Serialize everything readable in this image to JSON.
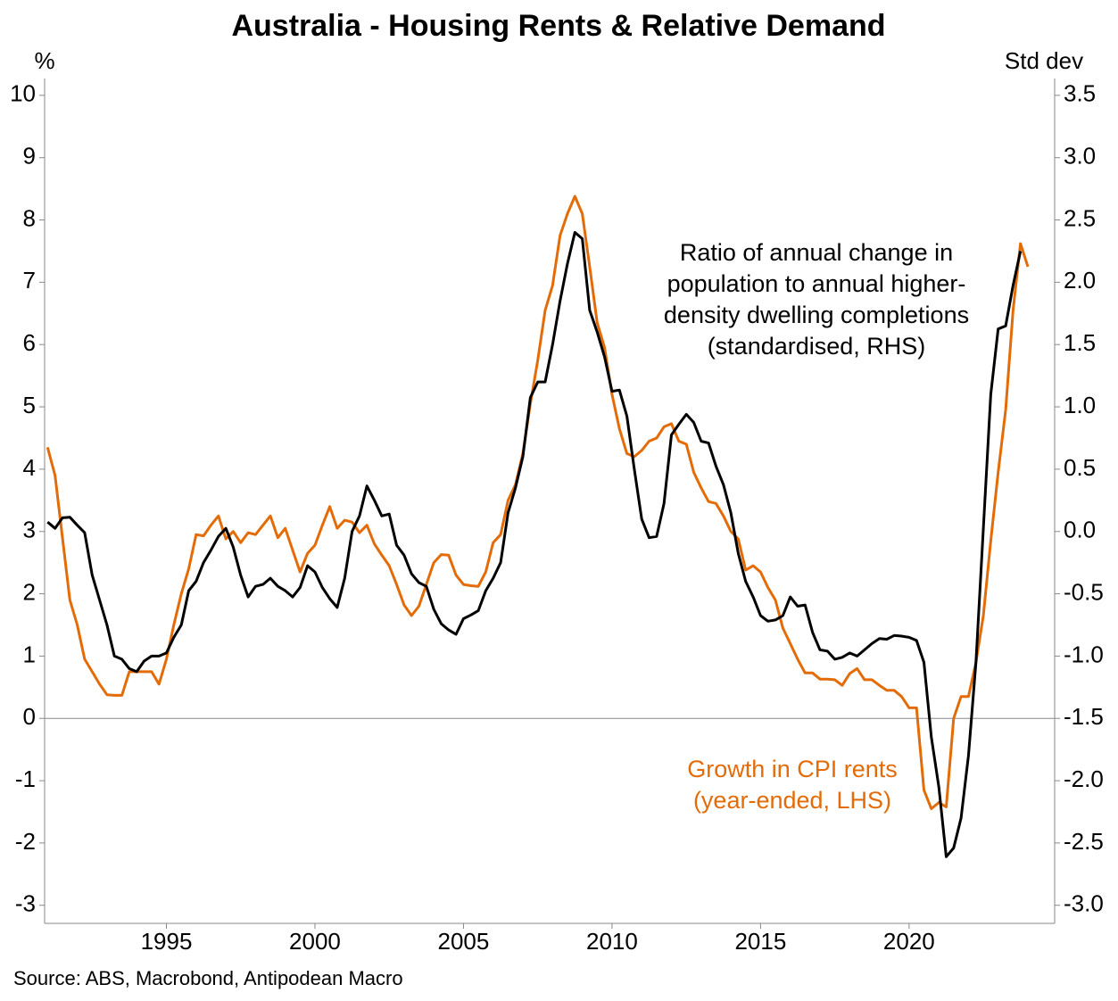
{
  "chart_data": {
    "type": "line",
    "title": "Australia - Housing Rents & Relative Demand",
    "y_unit": "%",
    "y2_unit": "Std dev",
    "source": "Source: ABS, Macrobond, Antipodean Macro",
    "annotations": [
      {
        "lines": [
          "Ratio of annual change in",
          "population to annual higher-",
          "density dwelling completions",
          "(standardised, RHS)"
        ],
        "color": "#000000"
      },
      {
        "lines": [
          "Growth in CPI rents",
          "(year-ended, LHS)"
        ],
        "color": "#e36c09"
      }
    ],
    "xlim": [
      1990.9,
      2024.9
    ],
    "xticks": [
      1995,
      2000,
      2005,
      2010,
      2015,
      2020
    ],
    "ylim": [
      -3.29,
      10.27
    ],
    "yticks": [
      -3,
      -2,
      -1,
      0,
      1,
      2,
      3,
      4,
      5,
      6,
      7,
      8,
      9,
      10
    ],
    "y2lim": [
      -3.145,
      3.635
    ],
    "y2ticks": [
      {
        "value": -3,
        "label": "-3.0"
      },
      -2.5,
      {
        "value": -2,
        "label": "-2.0"
      },
      -1.5,
      {
        "value": -1,
        "label": "-1.0"
      },
      -0.5,
      {
        "value": 0,
        "label": "0.0"
      },
      0.5,
      {
        "value": 1,
        "label": "1.0"
      },
      1.5,
      {
        "value": 2,
        "label": "2.0"
      },
      2.5,
      {
        "value": 3,
        "label": "3.0"
      },
      3.5
    ],
    "x": [
      1991,
      1991.25,
      1991.5,
      1991.75,
      1992,
      1992.25,
      1992.5,
      1992.75,
      1993,
      1993.25,
      1993.5,
      1993.75,
      1994,
      1994.25,
      1994.5,
      1994.75,
      1995,
      1995.25,
      1995.5,
      1995.75,
      1996,
      1996.25,
      1996.5,
      1996.75,
      1997,
      1997.25,
      1997.5,
      1997.75,
      1998,
      1998.25,
      1998.5,
      1998.75,
      1999,
      1999.25,
      1999.5,
      1999.75,
      2000,
      2000.25,
      2000.5,
      2000.75,
      2001,
      2001.25,
      2001.5,
      2001.75,
      2002,
      2002.25,
      2002.5,
      2002.75,
      2003,
      2003.25,
      2003.5,
      2003.75,
      2004,
      2004.25,
      2004.5,
      2004.75,
      2005,
      2005.25,
      2005.5,
      2005.75,
      2006,
      2006.25,
      2006.5,
      2006.75,
      2007,
      2007.25,
      2007.5,
      2007.75,
      2008,
      2008.25,
      2008.5,
      2008.75,
      2009,
      2009.25,
      2009.5,
      2009.75,
      2010,
      2010.25,
      2010.5,
      2010.75,
      2011,
      2011.25,
      2011.5,
      2011.75,
      2012,
      2012.25,
      2012.5,
      2012.75,
      2013,
      2013.25,
      2013.5,
      2013.75,
      2014,
      2014.25,
      2014.5,
      2014.75,
      2015,
      2015.25,
      2015.5,
      2015.75,
      2016,
      2016.25,
      2016.5,
      2016.75,
      2017,
      2017.25,
      2017.5,
      2017.75,
      2018,
      2018.25,
      2018.5,
      2018.75,
      2019,
      2019.25,
      2019.5,
      2019.75,
      2020,
      2020.25,
      2020.5,
      2020.75,
      2021,
      2021.25,
      2021.5,
      2021.75,
      2022,
      2022.25,
      2022.5,
      2022.75,
      2023,
      2023.25,
      2023.5,
      2023.75,
      2024
    ],
    "series": [
      {
        "name": "Growth in CPI rents (year-ended, LHS)",
        "color": "#e36c09",
        "axis": "y",
        "values": [
          4.35,
          3.9,
          2.9,
          1.9,
          1.5,
          0.95,
          0.75,
          0.55,
          0.38,
          0.37,
          0.37,
          0.75,
          0.75,
          0.75,
          0.75,
          0.55,
          0.95,
          1.5,
          2.0,
          2.4,
          2.95,
          2.93,
          3.1,
          3.25,
          2.88,
          3.0,
          2.82,
          2.98,
          2.95,
          3.1,
          3.25,
          2.9,
          3.05,
          2.7,
          2.35,
          2.65,
          2.78,
          3.1,
          3.4,
          3.05,
          3.18,
          3.15,
          2.98,
          3.1,
          2.8,
          2.62,
          2.45,
          2.15,
          1.82,
          1.65,
          1.8,
          2.15,
          2.5,
          2.63,
          2.62,
          2.3,
          2.15,
          2.13,
          2.12,
          2.35,
          2.82,
          2.95,
          3.5,
          3.75,
          4.25,
          5.05,
          5.75,
          6.55,
          6.95,
          7.75,
          8.1,
          8.38,
          8.1,
          7.25,
          6.35,
          5.95,
          5.2,
          4.65,
          4.25,
          4.2,
          4.3,
          4.45,
          4.5,
          4.68,
          4.73,
          4.45,
          4.4,
          3.95,
          3.7,
          3.48,
          3.45,
          3.25,
          3.0,
          2.88,
          2.38,
          2.45,
          2.35,
          2.1,
          1.9,
          1.45,
          1.2,
          0.95,
          0.73,
          0.73,
          0.63,
          0.63,
          0.62,
          0.53,
          0.72,
          0.8,
          0.62,
          0.62,
          0.53,
          0.45,
          0.45,
          0.35,
          0.17,
          0.17,
          -1.15,
          -1.45,
          -1.35,
          -1.42,
          0.0,
          0.35,
          0.35,
          0.9,
          1.65,
          2.85,
          3.95,
          4.95,
          6.55,
          7.62,
          7.25
        ]
      },
      {
        "name": "Ratio of annual change in population to annual higher-density dwelling completions (standardised, RHS)",
        "color": "#000000",
        "axis": "y2",
        "values": [
          0.075,
          0.025,
          0.11,
          0.115,
          0.05,
          -0.01,
          -0.35,
          -0.55,
          -0.75,
          -1.0,
          -1.025,
          -1.1,
          -1.125,
          -1.04,
          -1.0,
          -1.0,
          -0.975,
          -0.85,
          -0.75,
          -0.475,
          -0.4,
          -0.25,
          -0.15,
          -0.04,
          0.025,
          -0.125,
          -0.35,
          -0.525,
          -0.44,
          -0.425,
          -0.375,
          -0.44,
          -0.475,
          -0.525,
          -0.45,
          -0.275,
          -0.325,
          -0.45,
          -0.54,
          -0.61,
          -0.375,
          0.0,
          0.125,
          0.365,
          0.25,
          0.125,
          0.14,
          -0.11,
          -0.19,
          -0.34,
          -0.41,
          -0.44,
          -0.625,
          -0.74,
          -0.79,
          -0.825,
          -0.7,
          -0.67,
          -0.635,
          -0.475,
          -0.375,
          -0.25,
          0.15,
          0.35,
          0.6,
          1.075,
          1.2,
          1.2,
          1.5,
          1.85,
          2.15,
          2.4,
          2.35,
          1.775,
          1.6,
          1.4,
          1.125,
          1.135,
          0.925,
          0.5,
          0.1,
          -0.05,
          -0.04,
          0.225,
          0.775,
          0.86,
          0.94,
          0.875,
          0.725,
          0.71,
          0.525,
          0.375,
          0.15,
          -0.175,
          -0.4,
          -0.525,
          -0.675,
          -0.72,
          -0.71,
          -0.675,
          -0.525,
          -0.6,
          -0.59,
          -0.81,
          -0.95,
          -0.96,
          -1.025,
          -1.01,
          -0.975,
          -1.0,
          -0.95,
          -0.9,
          -0.86,
          -0.865,
          -0.835,
          -0.84,
          -0.85,
          -0.875,
          -1.05,
          -1.65,
          -2.05,
          -2.61,
          -2.54,
          -2.3,
          -1.8,
          -1.05,
          0.025,
          1.1,
          1.625,
          1.65,
          1.975,
          2.25,
          null
        ]
      }
    ]
  }
}
